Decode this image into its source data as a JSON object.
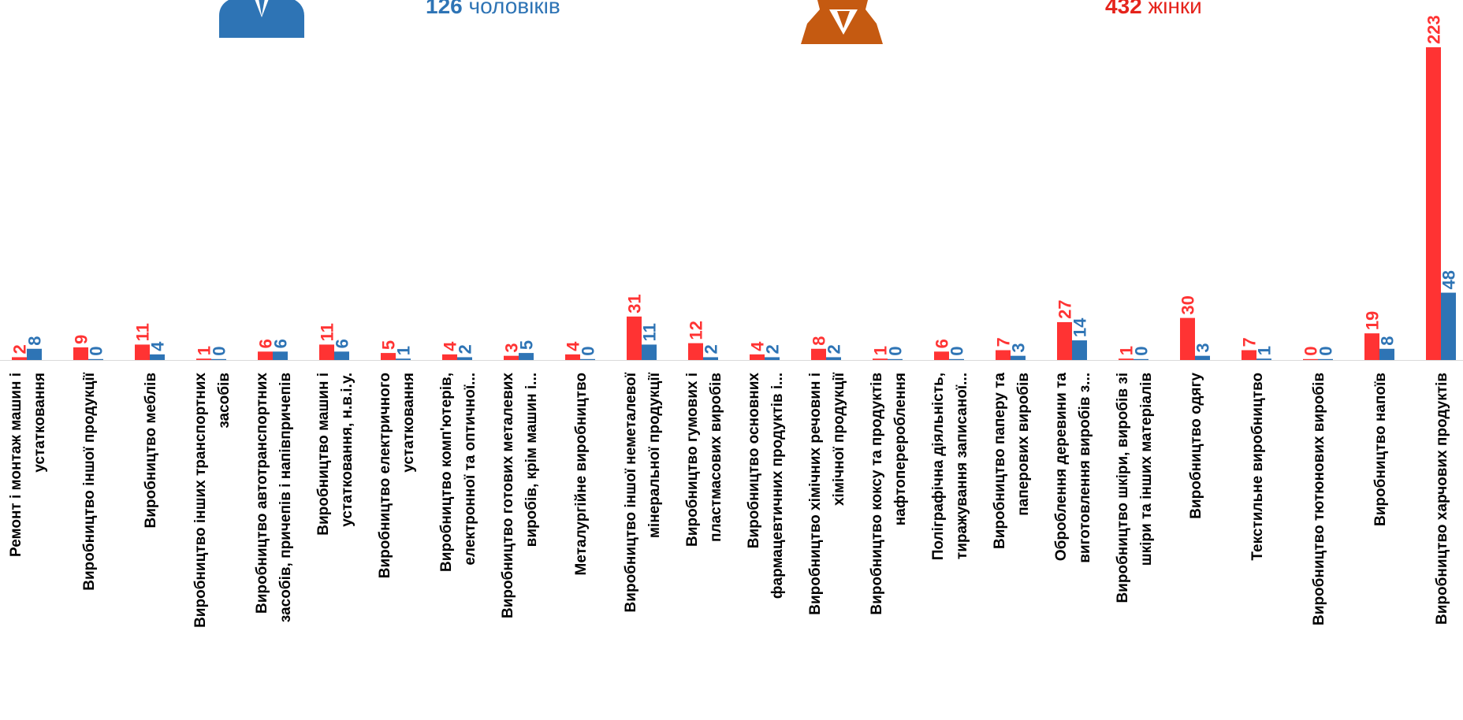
{
  "colors": {
    "women": "#FF3333",
    "men": "#2E74B5",
    "women_label": "#FF3333",
    "men_label": "#2E74B5",
    "women_icon": "#C55A11",
    "men_icon": "#2E74B5"
  },
  "legend": {
    "men_count": "126",
    "men_word": "чоловіків",
    "women_count": "432",
    "women_word": "жінки"
  },
  "chart_data": {
    "type": "bar",
    "title": "",
    "xlabel": "",
    "ylabel": "",
    "grid": false,
    "categories": [
      [
        "Ремонт і монтаж машин і",
        "устатковання"
      ],
      [
        "Виробництво іншої продукції"
      ],
      [
        "Виробництво меблів"
      ],
      [
        "Виробництво інших транспортних",
        "засобів"
      ],
      [
        "Виробництво автотранспортних",
        "засобів, причепів і напівпричепів"
      ],
      [
        "Виробництво машин і",
        "устатковання, н.в.і.у."
      ],
      [
        "Виробництво електричного",
        "устатковання"
      ],
      [
        "Виробництво комп'ютерів,",
        "електронної та оптичної..."
      ],
      [
        "Виробництво готових металевих",
        "виробів, крім машин і..."
      ],
      [
        "Металургійне виробництво"
      ],
      [
        "Виробництво іншої неметалевої",
        "мінеральної продукції"
      ],
      [
        "Виробництво гумових і",
        "пластмасових виробів"
      ],
      [
        "Виробництво основних",
        "фармацевтичних продуктів і..."
      ],
      [
        "Виробництво хімічних речовин і",
        "хімічної продукції"
      ],
      [
        "Виробництво коксу та продуктів",
        "нафтоперероблення"
      ],
      [
        "Поліграфічна діяльність,",
        "тиражування записаної..."
      ],
      [
        "Виробництво паперу та",
        "паперових виробів"
      ],
      [
        "Оброблення деревини та",
        "виготовлення виробів з..."
      ],
      [
        "Виробництво шкіри, виробів зі",
        "шкіри та інших матеріалів"
      ],
      [
        "Виробництво одягу"
      ],
      [
        "Текстильне виробництво"
      ],
      [
        "Виробництво тютюнових виробів"
      ],
      [
        "Виробництво напоїв"
      ],
      [
        "Виробництво харчових продуктів"
      ]
    ],
    "series": [
      {
        "name": "жінки",
        "values": [
          2,
          9,
          11,
          1,
          6,
          11,
          5,
          4,
          3,
          4,
          31,
          12,
          4,
          8,
          1,
          6,
          7,
          27,
          1,
          30,
          7,
          0,
          19,
          223
        ]
      },
      {
        "name": "чоловіків",
        "values": [
          8,
          0,
          4,
          0,
          6,
          6,
          1,
          2,
          5,
          0,
          11,
          2,
          2,
          2,
          0,
          0,
          3,
          14,
          0,
          3,
          1,
          0,
          8,
          48
        ]
      }
    ],
    "ylim": [
      0,
      223
    ]
  }
}
